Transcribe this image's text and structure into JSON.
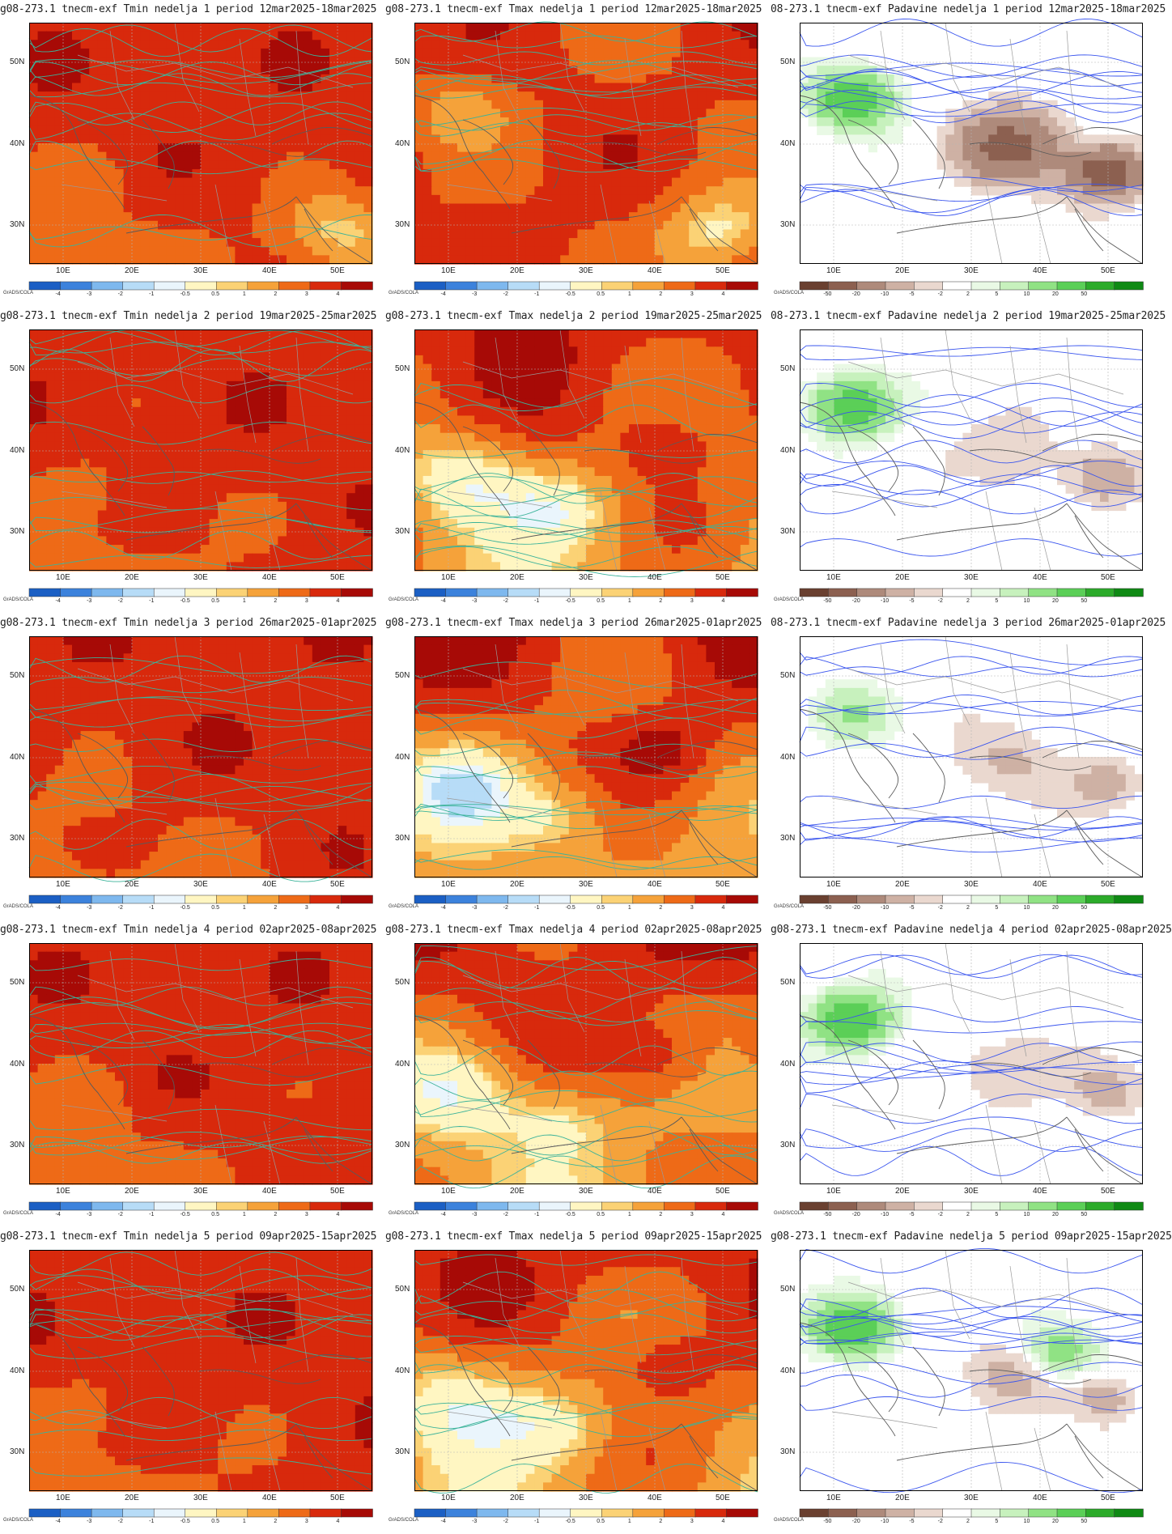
{
  "colors": {
    "temp": [
      "#1b5fc4",
      "#3c82dc",
      "#7eb8ee",
      "#b7dcf7",
      "#eaf5fc",
      "#fff6c2",
      "#fbd275",
      "#f5a23a",
      "#ee6a17",
      "#d8290c",
      "#a70a06"
    ],
    "precip": [
      "#6a4030",
      "#8c6050",
      "#ae8a7b",
      "#ceb1a4",
      "#ead8cf",
      "#ffffff",
      "#e9f9e5",
      "#c7f1bd",
      "#90e284",
      "#5bcf57",
      "#2cab2a",
      "#0f8a14"
    ],
    "contour_temp": "#3bb39a",
    "contour_precip": "#3a55ee",
    "border": "#9a9a9a"
  },
  "colorbar_labels_temp": [
    "-4",
    "-3",
    "-2",
    "-1",
    "-0.5",
    "0.5",
    "1",
    "2",
    "3",
    "4"
  ],
  "colorbar_labels_precip": [
    "-50",
    "-20",
    "-10",
    "-5",
    "-2",
    "2",
    "5",
    "10",
    "20",
    "50"
  ],
  "grads_label": "GrADS/COLA",
  "lat_ticks": [
    "50N",
    "40N",
    "30N"
  ],
  "lon_ticks": [
    "10E",
    "20E",
    "30E",
    "40E",
    "50E"
  ],
  "rows": [
    {
      "week": 1,
      "titles": [
        "g08-273.1 tnecm-exf Tmin nedelja 1 period 12mar2025-18mar2025",
        "g08-273.1 tnecm-exf Tmax nedelja 1 period 12mar2025-18mar2025",
        "08-273.1 tnecm-exf Padavine nedelja 1 period 12mar2025-18mar2025"
      ]
    },
    {
      "week": 2,
      "titles": [
        "g08-273.1 tnecm-exf Tmin nedelja 2 period 19mar2025-25mar2025",
        "g08-273.1 tnecm-exf Tmax nedelja 2 period 19mar2025-25mar2025",
        "08-273.1 tnecm-exf Padavine nedelja 2 period 19mar2025-25mar2025"
      ]
    },
    {
      "week": 3,
      "titles": [
        "g08-273.1 tnecm-exf Tmin nedelja 3 period 26mar2025-01apr2025",
        "g08-273.1 tnecm-exf Tmax nedelja 3 period 26mar2025-01apr2025",
        "08-273.1 tnecm-exf Padavine nedelja 3 period 26mar2025-01apr2025"
      ]
    },
    {
      "week": 4,
      "titles": [
        "g08-273.1 tnecm-exf Tmin nedelja 4 period 02apr2025-08apr2025",
        "g08-273.1 tnecm-exf Tmax nedelja 4 period 02apr2025-08apr2025",
        "g08-273.1 tnecm-exf Padavine nedelja 4 period 02apr2025-08apr2025"
      ]
    },
    {
      "week": 5,
      "titles": [
        "g08-273.1 tnecm-exf Tmin nedelja 5 period 09apr2025-15apr2025",
        "g08-273.1 tnecm-exf Tmax nedelja 5 period 09apr2025-15apr2025",
        "g08-273.1 tnecm-exf Padavine nedelja 5 period 09apr2025-15apr2025"
      ]
    }
  ]
}
